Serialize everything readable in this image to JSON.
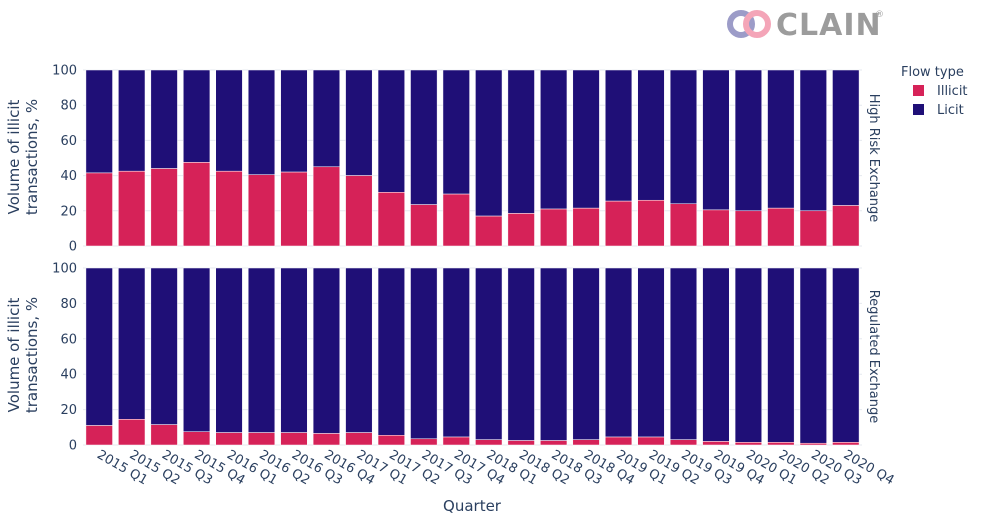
{
  "logo": {
    "text": "CLAIN",
    "registered": "®"
  },
  "legend": {
    "title": "Flow type"
  },
  "chart_data": {
    "type": "bar",
    "stacked": true,
    "xlabel": "Quarter",
    "ylabel_line1": "Volume of illicit",
    "ylabel_line2": "transactions, %",
    "ylim": [
      0,
      100
    ],
    "yticks": [
      0,
      20,
      40,
      60,
      80,
      100
    ],
    "categories": [
      "2015 Q1",
      "2015 Q2",
      "2015 Q3",
      "2015 Q4",
      "2016 Q1",
      "2016 Q2",
      "2016 Q3",
      "2016 Q4",
      "2017 Q1",
      "2017 Q2",
      "2017 Q3",
      "2017 Q4",
      "2018 Q1",
      "2018 Q2",
      "2018 Q3",
      "2018 Q4",
      "2019 Q1",
      "2019 Q2",
      "2019 Q3",
      "2019 Q4",
      "2020 Q1",
      "2020 Q2",
      "2020 Q3",
      "2020 Q4"
    ],
    "series": [
      {
        "name": "Illicit",
        "color": "#d62258"
      },
      {
        "name": "Licit",
        "color": "#1f0f77"
      }
    ],
    "facets": [
      {
        "name": "High Risk Exchange",
        "illicit": [
          41.5,
          42.5,
          44,
          47.5,
          42.5,
          40.5,
          42,
          45,
          40,
          30.5,
          23.5,
          29.5,
          17,
          18.5,
          21,
          21.5,
          25.5,
          26,
          24,
          20.5,
          20,
          21.5,
          20,
          23
        ]
      },
      {
        "name": "Regulated Exchange",
        "illicit": [
          11,
          14.5,
          11.5,
          7.5,
          7,
          7,
          7,
          6.5,
          7,
          5.5,
          3.5,
          4.5,
          3,
          2.5,
          2.5,
          3,
          4.5,
          4.5,
          3,
          2,
          1.5,
          1.5,
          1,
          1.5
        ]
      }
    ]
  }
}
